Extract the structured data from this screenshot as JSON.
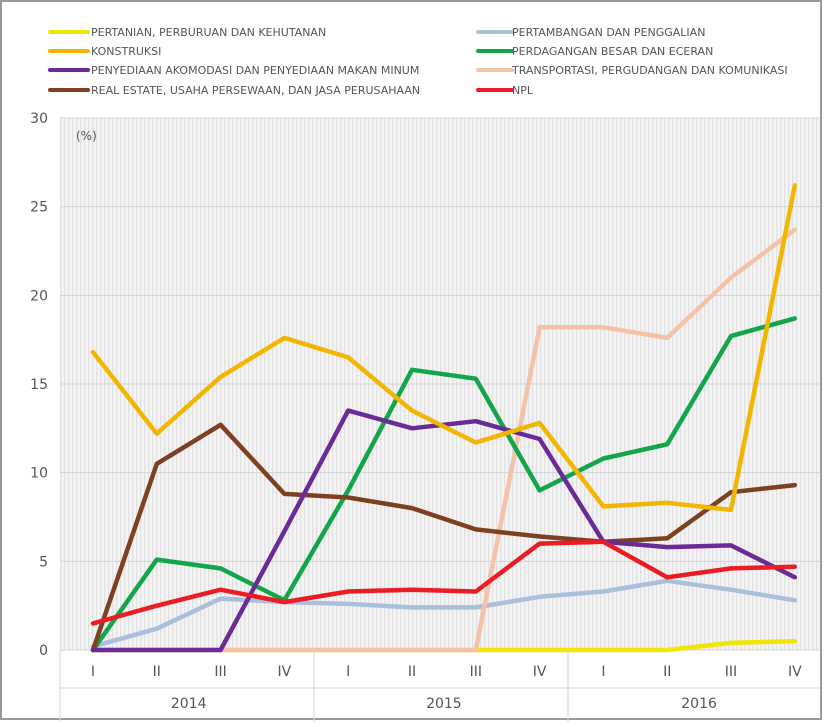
{
  "chart_data": {
    "type": "line",
    "ylabel": "(%)",
    "ylim": [
      0,
      30
    ],
    "yticks": [
      0,
      5,
      10,
      15,
      20,
      25,
      30
    ],
    "categories": [
      "I",
      "II",
      "III",
      "IV",
      "I",
      "II",
      "III",
      "IV",
      "I",
      "II",
      "III",
      "IV"
    ],
    "years": [
      "2014",
      "2015",
      "2016"
    ],
    "grid": true,
    "legend_position": "top",
    "series": [
      {
        "name": "PERTANIAN, PERBURUAN DAN KEHUTANAN",
        "color": "#f2e600",
        "values": [
          0,
          0,
          0,
          0,
          0,
          0,
          0,
          0,
          0,
          0,
          0.4,
          0.5
        ]
      },
      {
        "name": "PERTAMBANGAN DAN PENGGALIAN",
        "color": "#aabfdc",
        "values": [
          0.2,
          1.2,
          2.9,
          2.7,
          2.6,
          2.4,
          2.4,
          3.0,
          3.3,
          3.9,
          3.4,
          2.8
        ]
      },
      {
        "name": "KONSTRUKSI",
        "color": "#f2b600",
        "values": [
          16.8,
          12.2,
          15.4,
          17.6,
          16.5,
          13.5,
          11.7,
          12.8,
          8.1,
          8.3,
          7.9,
          26.2
        ]
      },
      {
        "name": "PERDAGANGAN BESAR DAN ECERAN",
        "color": "#12a54a",
        "values": [
          0,
          5.1,
          4.6,
          2.8,
          9.0,
          15.8,
          15.3,
          9.0,
          10.8,
          11.6,
          17.7,
          18.7
        ]
      },
      {
        "name": "PENYEDIAAN AKOMODASI DAN PENYEDIAAN MAKAN MINUM",
        "color": "#6b2b97",
        "values": [
          0,
          0,
          0,
          6.7,
          13.5,
          12.5,
          12.9,
          11.9,
          6.1,
          5.8,
          5.9,
          4.1
        ]
      },
      {
        "name": "TRANSPORTASI, PERGUDANGAN DAN KOMUNIKASI",
        "color": "#f3c3a8",
        "values": [
          0,
          0,
          0,
          0,
          0,
          0,
          0,
          18.2,
          18.2,
          17.6,
          21.0,
          23.7
        ]
      },
      {
        "name": "REAL ESTATE, USAHA PERSEWAAN, DAN JASA PERUSAHAAN",
        "color": "#7d4121",
        "values": [
          0,
          10.5,
          12.7,
          8.8,
          8.6,
          8.0,
          6.8,
          6.4,
          6.1,
          6.3,
          8.9,
          9.3
        ]
      },
      {
        "name": "NPL",
        "color": "#ea1c24",
        "values": [
          1.5,
          2.5,
          3.4,
          2.7,
          3.3,
          3.4,
          3.3,
          6.0,
          6.1,
          4.1,
          4.6,
          4.7
        ]
      }
    ]
  }
}
